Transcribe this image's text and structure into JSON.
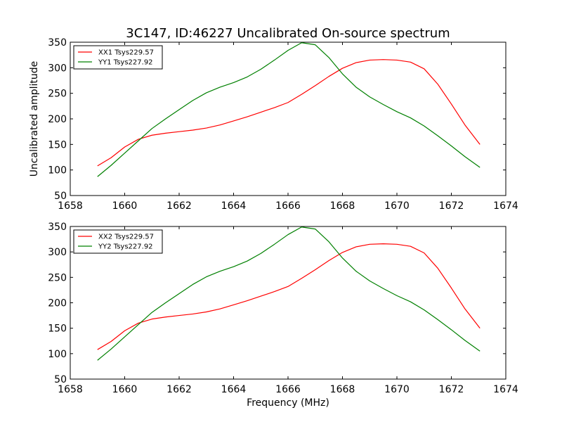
{
  "figure_title": "3C147, ID:46227 Uncalibrated On-source spectrum",
  "chart_data": [
    {
      "type": "line",
      "title": "3C147, ID:46227 Uncalibrated On-source spectrum",
      "xlabel": "",
      "ylabel": "Uncalibrated amplitude",
      "xlim": [
        1658,
        1674
      ],
      "ylim": [
        50,
        350
      ],
      "xticks": [
        "1658",
        "1660",
        "1662",
        "1664",
        "1666",
        "1668",
        "1670",
        "1672",
        "1674"
      ],
      "yticks": [
        "50",
        "100",
        "150",
        "200",
        "250",
        "300",
        "350"
      ],
      "legend_position": "top-left",
      "x": [
        1659,
        1659.5,
        1660,
        1660.5,
        1661,
        1661.5,
        1662,
        1662.5,
        1663,
        1663.5,
        1664,
        1664.5,
        1665,
        1665.5,
        1666,
        1666.5,
        1667,
        1667.5,
        1668,
        1668.5,
        1669,
        1669.5,
        1670,
        1670.5,
        1671,
        1671.5,
        1672,
        1672.5,
        1673.05
      ],
      "series": [
        {
          "name": "XX1 Tsys229.57",
          "color": "#ff0000",
          "values": [
            108,
            124,
            145,
            160,
            168,
            172,
            175,
            178,
            182,
            188,
            196,
            204,
            213,
            222,
            232,
            248,
            265,
            283,
            299,
            310,
            315,
            316,
            315,
            311,
            298,
            268,
            229,
            188,
            150
          ]
        },
        {
          "name": "YY1 Tsys227.92",
          "color": "#008000",
          "values": [
            87,
            109,
            133,
            157,
            181,
            200,
            218,
            236,
            251,
            262,
            271,
            282,
            297,
            315,
            334,
            349,
            345,
            320,
            288,
            262,
            243,
            228,
            214,
            202,
            186,
            167,
            147,
            126,
            105
          ]
        }
      ]
    },
    {
      "type": "line",
      "title": "",
      "xlabel": "Frequency (MHz)",
      "ylabel": "",
      "xlim": [
        1658,
        1674
      ],
      "ylim": [
        50,
        350
      ],
      "xticks": [
        "1658",
        "1660",
        "1662",
        "1664",
        "1666",
        "1668",
        "1670",
        "1672",
        "1674"
      ],
      "yticks": [
        "50",
        "100",
        "150",
        "200",
        "250",
        "300",
        "350"
      ],
      "legend_position": "top-left",
      "x": [
        1659,
        1659.5,
        1660,
        1660.5,
        1661,
        1661.5,
        1662,
        1662.5,
        1663,
        1663.5,
        1664,
        1664.5,
        1665,
        1665.5,
        1666,
        1666.5,
        1667,
        1667.5,
        1668,
        1668.5,
        1669,
        1669.5,
        1670,
        1670.5,
        1671,
        1671.5,
        1672,
        1672.5,
        1673.05
      ],
      "series": [
        {
          "name": "XX2 Tsys229.57",
          "color": "#ff0000",
          "values": [
            108,
            124,
            145,
            160,
            168,
            172,
            175,
            178,
            182,
            188,
            196,
            204,
            213,
            222,
            232,
            248,
            265,
            283,
            299,
            310,
            315,
            316,
            315,
            311,
            298,
            268,
            229,
            188,
            150
          ]
        },
        {
          "name": "YY2 Tsys227.92",
          "color": "#008000",
          "values": [
            87,
            109,
            133,
            157,
            181,
            200,
            218,
            236,
            251,
            262,
            271,
            282,
            297,
            315,
            334,
            349,
            345,
            320,
            288,
            262,
            243,
            228,
            214,
            202,
            186,
            167,
            147,
            126,
            105
          ]
        }
      ]
    }
  ]
}
